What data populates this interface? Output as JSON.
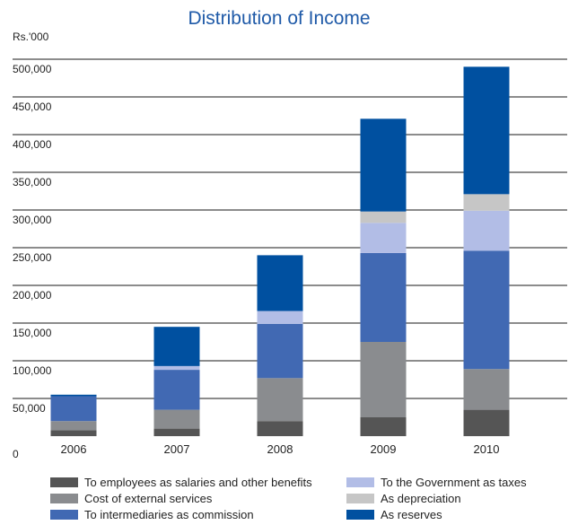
{
  "chart_data": {
    "type": "bar",
    "stacked": true,
    "title": "Distribution of Income",
    "y_unit": "Rs.'000",
    "ylim": [
      0,
      500000
    ],
    "y_ticks": [
      "0",
      "50,000",
      "100,000",
      "150,000",
      "200,000",
      "250,000",
      "300,000",
      "350,000",
      "400,000",
      "450,000",
      "500,000"
    ],
    "y_tick_values": [
      0,
      50000,
      100000,
      150000,
      200000,
      250000,
      300000,
      350000,
      400000,
      450000,
      500000
    ],
    "grid": true,
    "categories": [
      "2006",
      "2007",
      "2008",
      "2009",
      "2010"
    ],
    "legend_position": "bottom",
    "series": [
      {
        "name": "To employees as salaries and other benefits",
        "color": "#555555",
        "values": [
          8000,
          10000,
          20000,
          25000,
          35000
        ]
      },
      {
        "name": "Cost of external services",
        "color": "#8a8c8f",
        "values": [
          12000,
          25000,
          57000,
          100000,
          54000
        ]
      },
      {
        "name": "To intermediaries as commission",
        "color": "#4169b3",
        "values": [
          33000,
          53000,
          72000,
          118000,
          157000
        ]
      },
      {
        "name": "To the Government as taxes",
        "color": "#b2bde6",
        "values": [
          0,
          5000,
          17000,
          40000,
          53000
        ]
      },
      {
        "name": "As depreciation",
        "color": "#c6c6c6",
        "values": [
          0,
          0,
          0,
          15000,
          22000
        ]
      },
      {
        "name": "As reserves",
        "color": "#0050a0",
        "values": [
          2000,
          52000,
          74000,
          123000,
          169000
        ]
      }
    ]
  }
}
